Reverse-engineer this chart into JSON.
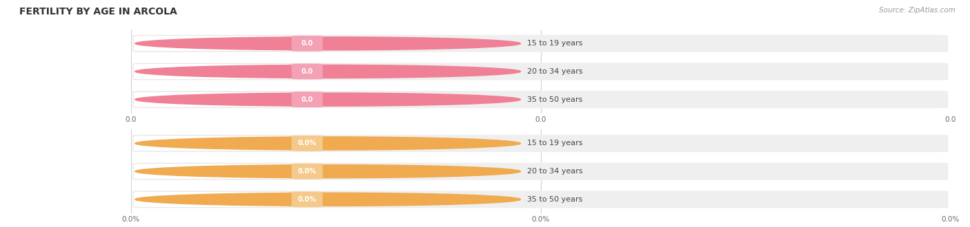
{
  "title": "FERTILITY BY AGE IN ARCOLA",
  "source_text": "Source: ZipAtlas.com",
  "top_section": {
    "categories": [
      "15 to 19 years",
      "20 to 34 years",
      "35 to 50 years"
    ],
    "values": [
      0.0,
      0.0,
      0.0
    ],
    "bar_color": "#f4a0b5",
    "circle_color": "#f08096",
    "value_label": "0.0",
    "tick_labels": [
      "0.0",
      "0.0",
      "0.0"
    ]
  },
  "bottom_section": {
    "categories": [
      "15 to 19 years",
      "20 to 34 years",
      "35 to 50 years"
    ],
    "values": [
      0.0,
      0.0,
      0.0
    ],
    "bar_color": "#f5c98a",
    "circle_color": "#f0aa50",
    "value_label": "0.0%",
    "tick_labels": [
      "0.0%",
      "0.0%",
      "0.0%"
    ]
  },
  "bg_color": "#ffffff",
  "bar_bg_color": "#efefef",
  "label_bg_color": "#ffffff",
  "bar_height": 0.62,
  "title_fontsize": 10,
  "label_fontsize": 8,
  "value_fontsize": 7,
  "tick_fontsize": 7.5,
  "source_fontsize": 7.5
}
